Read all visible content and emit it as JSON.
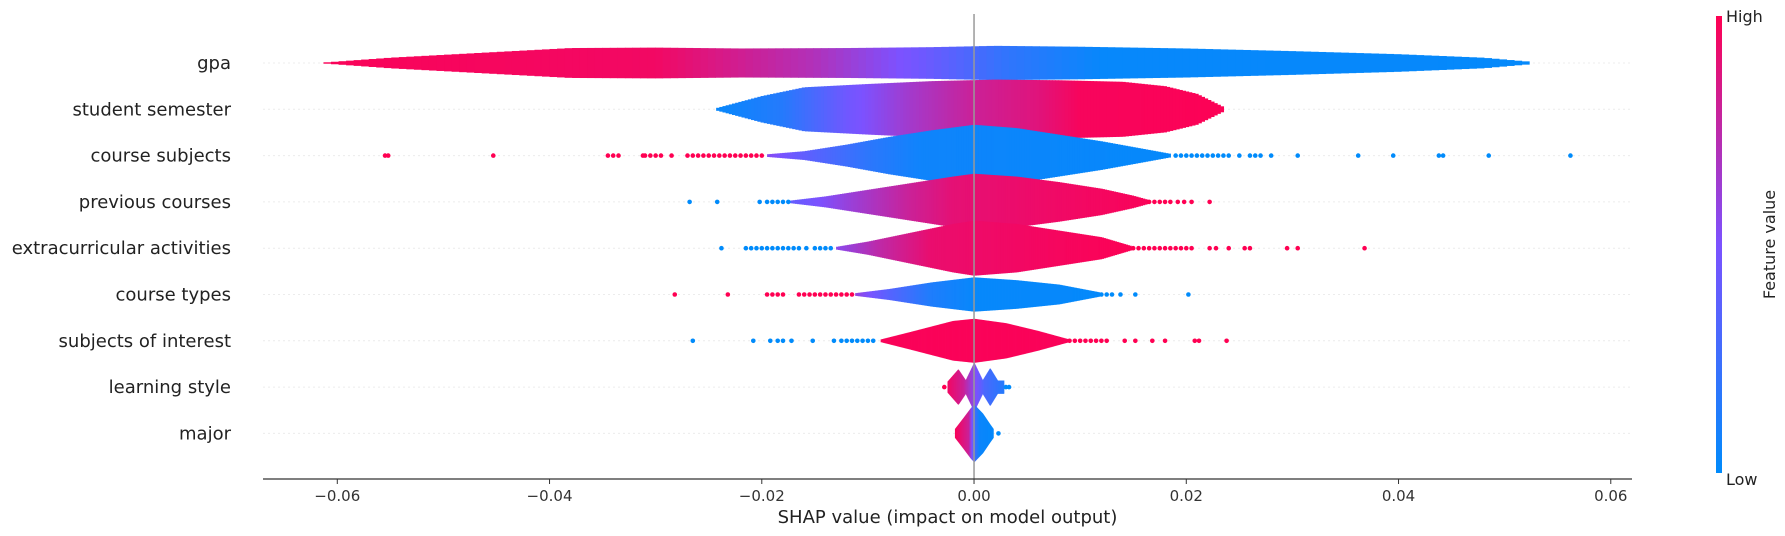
{
  "chart_data": {
    "type": "violin",
    "xlabel": "SHAP value (impact on model output)",
    "xlim": [
      -0.067,
      0.062
    ],
    "xticks": [
      -0.06,
      -0.04,
      -0.02,
      0.0,
      0.02,
      0.04,
      0.06
    ],
    "xtick_labels": [
      "−0.06",
      "−0.04",
      "−0.02",
      "0.00",
      "0.02",
      "0.04",
      "0.06"
    ],
    "colorbar": {
      "label": "Feature value",
      "high": "High",
      "low": "Low",
      "colors": [
        "#008bfb",
        "#ff0052"
      ]
    },
    "features": [
      {
        "name": "gpa",
        "min": -0.0613,
        "max": 0.0523,
        "profile": [
          [
            -0.0613,
            0.2
          ],
          [
            -0.055,
            2.4
          ],
          [
            -0.045,
            5.0
          ],
          [
            -0.038,
            6.8
          ],
          [
            -0.03,
            7.0
          ],
          [
            -0.022,
            6.6
          ],
          [
            -0.012,
            6.8
          ],
          [
            -0.004,
            7.2
          ],
          [
            0.002,
            7.8
          ],
          [
            0.01,
            7.4
          ],
          [
            0.02,
            6.6
          ],
          [
            0.03,
            5.4
          ],
          [
            0.04,
            4.0
          ],
          [
            0.048,
            2.4
          ],
          [
            0.0523,
            0.6
          ]
        ],
        "color_stops": [
          [
            -0.0613,
            0.98
          ],
          [
            -0.03,
            0.95
          ],
          [
            -0.015,
            0.7
          ],
          [
            -0.005,
            0.45
          ],
          [
            0.003,
            0.2
          ],
          [
            0.012,
            0.03
          ],
          [
            0.0523,
            0.02
          ]
        ],
        "dots": []
      },
      {
        "name": "student semester",
        "min": -0.0243,
        "max": 0.0235,
        "profile": [
          [
            -0.0243,
            0.5
          ],
          [
            -0.02,
            6.0
          ],
          [
            -0.016,
            10.0
          ],
          [
            -0.01,
            11.5
          ],
          [
            -0.004,
            12.8
          ],
          [
            0.002,
            13.5
          ],
          [
            0.008,
            13.2
          ],
          [
            0.014,
            12.5
          ],
          [
            0.018,
            10.5
          ],
          [
            0.021,
            7.0
          ],
          [
            0.0235,
            1.0
          ]
        ],
        "color_stops": [
          [
            -0.0243,
            0.03
          ],
          [
            -0.018,
            0.15
          ],
          [
            -0.012,
            0.45
          ],
          [
            -0.006,
            0.65
          ],
          [
            0.0,
            0.8
          ],
          [
            0.006,
            0.88
          ],
          [
            0.01,
            0.97
          ],
          [
            0.0235,
            0.99
          ]
        ],
        "dots": []
      },
      {
        "name": "course subjects",
        "min": -0.0195,
        "max": 0.0185,
        "profile": [
          [
            -0.0195,
            0.6
          ],
          [
            -0.016,
            2.0
          ],
          [
            -0.012,
            5.0
          ],
          [
            -0.008,
            8.5
          ],
          [
            -0.004,
            11.5
          ],
          [
            0.0,
            14.0
          ],
          [
            0.004,
            12.5
          ],
          [
            0.008,
            9.5
          ],
          [
            0.012,
            6.5
          ],
          [
            0.016,
            3.0
          ],
          [
            0.0185,
            0.8
          ]
        ],
        "color_stops": [
          [
            -0.0195,
            0.55
          ],
          [
            -0.015,
            0.35
          ],
          [
            -0.01,
            0.18
          ],
          [
            -0.005,
            0.06
          ],
          [
            0.0185,
            0.02
          ]
        ],
        "dots": [
          [
            -0.0555,
            1
          ],
          [
            -0.0552,
            1
          ],
          [
            -0.0453,
            1
          ],
          [
            -0.0345,
            1
          ],
          [
            -0.034,
            1
          ],
          [
            -0.0335,
            1
          ],
          [
            -0.0312,
            1
          ],
          [
            -0.031,
            1
          ],
          [
            -0.0305,
            1
          ],
          [
            -0.03,
            1
          ],
          [
            -0.0295,
            1
          ],
          [
            -0.0285,
            1
          ],
          [
            -0.027,
            1
          ],
          [
            -0.0265,
            1
          ],
          [
            -0.026,
            1
          ],
          [
            -0.0255,
            1
          ],
          [
            -0.025,
            1
          ],
          [
            -0.0245,
            1
          ],
          [
            -0.024,
            1
          ],
          [
            -0.0235,
            1
          ],
          [
            -0.023,
            1
          ],
          [
            -0.0225,
            1
          ],
          [
            -0.022,
            1
          ],
          [
            -0.0215,
            1
          ],
          [
            -0.021,
            1
          ],
          [
            -0.0205,
            1
          ],
          [
            -0.02,
            1
          ],
          [
            0.019,
            0
          ],
          [
            0.0195,
            0
          ],
          [
            0.02,
            0
          ],
          [
            0.0205,
            0
          ],
          [
            0.021,
            0
          ],
          [
            0.0215,
            0
          ],
          [
            0.022,
            0
          ],
          [
            0.0225,
            0
          ],
          [
            0.023,
            0
          ],
          [
            0.0235,
            0
          ],
          [
            0.024,
            0
          ],
          [
            0.025,
            0
          ],
          [
            0.026,
            0
          ],
          [
            0.0265,
            0
          ],
          [
            0.027,
            0
          ],
          [
            0.028,
            0
          ],
          [
            0.0305,
            0
          ],
          [
            0.0362,
            0
          ],
          [
            0.0395,
            0
          ],
          [
            0.0438,
            0
          ],
          [
            0.0442,
            0
          ],
          [
            0.0485,
            0
          ],
          [
            0.0562,
            0
          ]
        ]
      },
      {
        "name": "previous courses",
        "min": -0.0173,
        "max": 0.0165,
        "profile": [
          [
            -0.0173,
            0.6
          ],
          [
            -0.014,
            2.5
          ],
          [
            -0.01,
            5.5
          ],
          [
            -0.006,
            8.5
          ],
          [
            -0.002,
            11.5
          ],
          [
            0.0,
            12.8
          ],
          [
            0.004,
            11.5
          ],
          [
            0.008,
            9.0
          ],
          [
            0.012,
            6.0
          ],
          [
            0.015,
            2.8
          ],
          [
            0.0165,
            0.8
          ]
        ],
        "color_stops": [
          [
            -0.0173,
            0.4
          ],
          [
            -0.012,
            0.6
          ],
          [
            -0.006,
            0.8
          ],
          [
            -0.002,
            0.9
          ],
          [
            0.0165,
            0.98
          ]
        ],
        "dots": [
          [
            -0.0268,
            0
          ],
          [
            -0.0242,
            0
          ],
          [
            -0.0202,
            0
          ],
          [
            -0.0195,
            0
          ],
          [
            -0.019,
            0
          ],
          [
            -0.0185,
            0
          ],
          [
            -0.018,
            0
          ],
          [
            -0.0175,
            0
          ],
          [
            0.0165,
            1
          ],
          [
            0.017,
            1
          ],
          [
            0.0175,
            1
          ],
          [
            0.018,
            1
          ],
          [
            0.0185,
            1
          ],
          [
            0.0192,
            1
          ],
          [
            0.0198,
            1
          ],
          [
            0.0205,
            1
          ],
          [
            0.0222,
            1
          ]
        ]
      },
      {
        "name": "extracurricular activities",
        "min": -0.013,
        "max": 0.0148,
        "profile": [
          [
            -0.013,
            0.6
          ],
          [
            -0.01,
            3.0
          ],
          [
            -0.006,
            7.0
          ],
          [
            -0.002,
            11.0
          ],
          [
            0.0,
            12.5
          ],
          [
            0.004,
            11.0
          ],
          [
            0.008,
            8.0
          ],
          [
            0.012,
            5.0
          ],
          [
            0.0148,
            1.0
          ]
        ],
        "color_stops": [
          [
            -0.013,
            0.55
          ],
          [
            -0.009,
            0.75
          ],
          [
            -0.004,
            0.92
          ],
          [
            0.0148,
            0.99
          ]
        ],
        "dots": [
          [
            -0.0238,
            0
          ],
          [
            -0.0215,
            0
          ],
          [
            -0.021,
            0
          ],
          [
            -0.0205,
            0
          ],
          [
            -0.02,
            0
          ],
          [
            -0.0195,
            0
          ],
          [
            -0.019,
            0
          ],
          [
            -0.0185,
            0
          ],
          [
            -0.018,
            0
          ],
          [
            -0.0175,
            0
          ],
          [
            -0.017,
            0
          ],
          [
            -0.0165,
            0
          ],
          [
            -0.0158,
            0
          ],
          [
            -0.015,
            0
          ],
          [
            -0.0145,
            0
          ],
          [
            -0.014,
            0
          ],
          [
            -0.0135,
            0
          ],
          [
            0.015,
            1
          ],
          [
            0.0155,
            1
          ],
          [
            0.016,
            1
          ],
          [
            0.0165,
            1
          ],
          [
            0.017,
            1
          ],
          [
            0.0175,
            1
          ],
          [
            0.018,
            1
          ],
          [
            0.0185,
            1
          ],
          [
            0.019,
            1
          ],
          [
            0.0195,
            1
          ],
          [
            0.02,
            1
          ],
          [
            0.0205,
            1
          ],
          [
            0.0222,
            1
          ],
          [
            0.0228,
            1
          ],
          [
            0.024,
            1
          ],
          [
            0.0255,
            1
          ],
          [
            0.026,
            1
          ],
          [
            0.0295,
            1
          ],
          [
            0.0305,
            1
          ],
          [
            0.0368,
            1
          ]
        ]
      },
      {
        "name": "course types",
        "min": -0.0112,
        "max": 0.0118,
        "profile": [
          [
            -0.0112,
            0.6
          ],
          [
            -0.008,
            2.5
          ],
          [
            -0.004,
            5.5
          ],
          [
            0.0,
            7.8
          ],
          [
            0.004,
            6.5
          ],
          [
            0.008,
            4.5
          ],
          [
            0.0118,
            1.0
          ]
        ],
        "color_stops": [
          [
            -0.0112,
            0.6
          ],
          [
            -0.008,
            0.35
          ],
          [
            -0.004,
            0.12
          ],
          [
            0.0,
            0.03
          ],
          [
            0.0118,
            0.02
          ]
        ],
        "dots": [
          [
            -0.0282,
            1
          ],
          [
            -0.0232,
            1
          ],
          [
            -0.0195,
            1
          ],
          [
            -0.019,
            1
          ],
          [
            -0.0185,
            1
          ],
          [
            -0.018,
            1
          ],
          [
            -0.0165,
            1
          ],
          [
            -0.016,
            1
          ],
          [
            -0.0155,
            1
          ],
          [
            -0.015,
            1
          ],
          [
            -0.0145,
            1
          ],
          [
            -0.014,
            1
          ],
          [
            -0.0135,
            1
          ],
          [
            -0.013,
            1
          ],
          [
            -0.0125,
            1
          ],
          [
            -0.012,
            1
          ],
          [
            -0.0115,
            1
          ],
          [
            0.012,
            0
          ],
          [
            0.0125,
            0
          ],
          [
            0.013,
            0
          ],
          [
            0.0138,
            0
          ],
          [
            0.0152,
            0
          ],
          [
            0.0202,
            0
          ]
        ]
      },
      {
        "name": "subjects of interest",
        "min": -0.0088,
        "max": 0.0088,
        "profile": [
          [
            -0.0088,
            0.6
          ],
          [
            -0.006,
            4.0
          ],
          [
            -0.002,
            9.0
          ],
          [
            0.0,
            10.0
          ],
          [
            0.003,
            8.0
          ],
          [
            0.006,
            4.5
          ],
          [
            0.0088,
            0.8
          ]
        ],
        "color_stops": [
          [
            -0.0088,
            0.98
          ],
          [
            0.0088,
            0.98
          ]
        ],
        "dots": [
          [
            -0.0265,
            0
          ],
          [
            -0.0208,
            0
          ],
          [
            -0.0192,
            0
          ],
          [
            -0.0185,
            0
          ],
          [
            -0.018,
            0
          ],
          [
            -0.0172,
            0
          ],
          [
            -0.0152,
            0
          ],
          [
            -0.0132,
            0
          ],
          [
            -0.0125,
            0
          ],
          [
            -0.012,
            0
          ],
          [
            -0.0115,
            0
          ],
          [
            -0.011,
            0
          ],
          [
            -0.0105,
            0
          ],
          [
            -0.01,
            0
          ],
          [
            -0.0095,
            0
          ],
          [
            0.009,
            1
          ],
          [
            0.0095,
            1
          ],
          [
            0.01,
            1
          ],
          [
            0.0105,
            1
          ],
          [
            0.011,
            1
          ],
          [
            0.0115,
            1
          ],
          [
            0.012,
            1
          ],
          [
            0.0125,
            1
          ],
          [
            0.0142,
            1
          ],
          [
            0.0152,
            1
          ],
          [
            0.0168,
            1
          ],
          [
            0.018,
            1
          ],
          [
            0.0208,
            1
          ],
          [
            0.0212,
            1
          ],
          [
            0.0238,
            1
          ]
        ]
      },
      {
        "name": "learning style",
        "min": -0.0025,
        "max": 0.0028,
        "profile": [
          [
            -0.0025,
            2.5
          ],
          [
            -0.0015,
            8.0
          ],
          [
            -0.0008,
            3.0
          ],
          [
            0.0,
            11.0
          ],
          [
            0.0008,
            3.0
          ],
          [
            0.0015,
            8.5
          ],
          [
            0.0022,
            3.0
          ],
          [
            0.0028,
            3.0
          ]
        ],
        "color_stops": [
          [
            -0.0025,
            0.95
          ],
          [
            -0.001,
            0.8
          ],
          [
            0.0,
            0.55
          ],
          [
            0.001,
            0.3
          ],
          [
            0.0028,
            0.15
          ]
        ],
        "dots": [
          [
            -0.0028,
            1
          ],
          [
            0.003,
            0
          ],
          [
            0.0033,
            0
          ]
        ]
      },
      {
        "name": "major",
        "min": -0.0018,
        "max": 0.0018,
        "profile": [
          [
            -0.0018,
            2.0
          ],
          [
            -0.001,
            7.0
          ],
          [
            -0.0003,
            11.5
          ],
          [
            0.0,
            13.0
          ],
          [
            0.0008,
            9.0
          ],
          [
            0.0015,
            4.0
          ],
          [
            0.0018,
            2.0
          ]
        ],
        "color_stops": [
          [
            -0.0018,
            0.98
          ],
          [
            -0.0005,
            0.8
          ],
          [
            0.0,
            0.3
          ],
          [
            0.0005,
            0.05
          ],
          [
            0.0018,
            0.02
          ]
        ],
        "dots": [
          [
            0.0023,
            0
          ]
        ]
      }
    ]
  }
}
